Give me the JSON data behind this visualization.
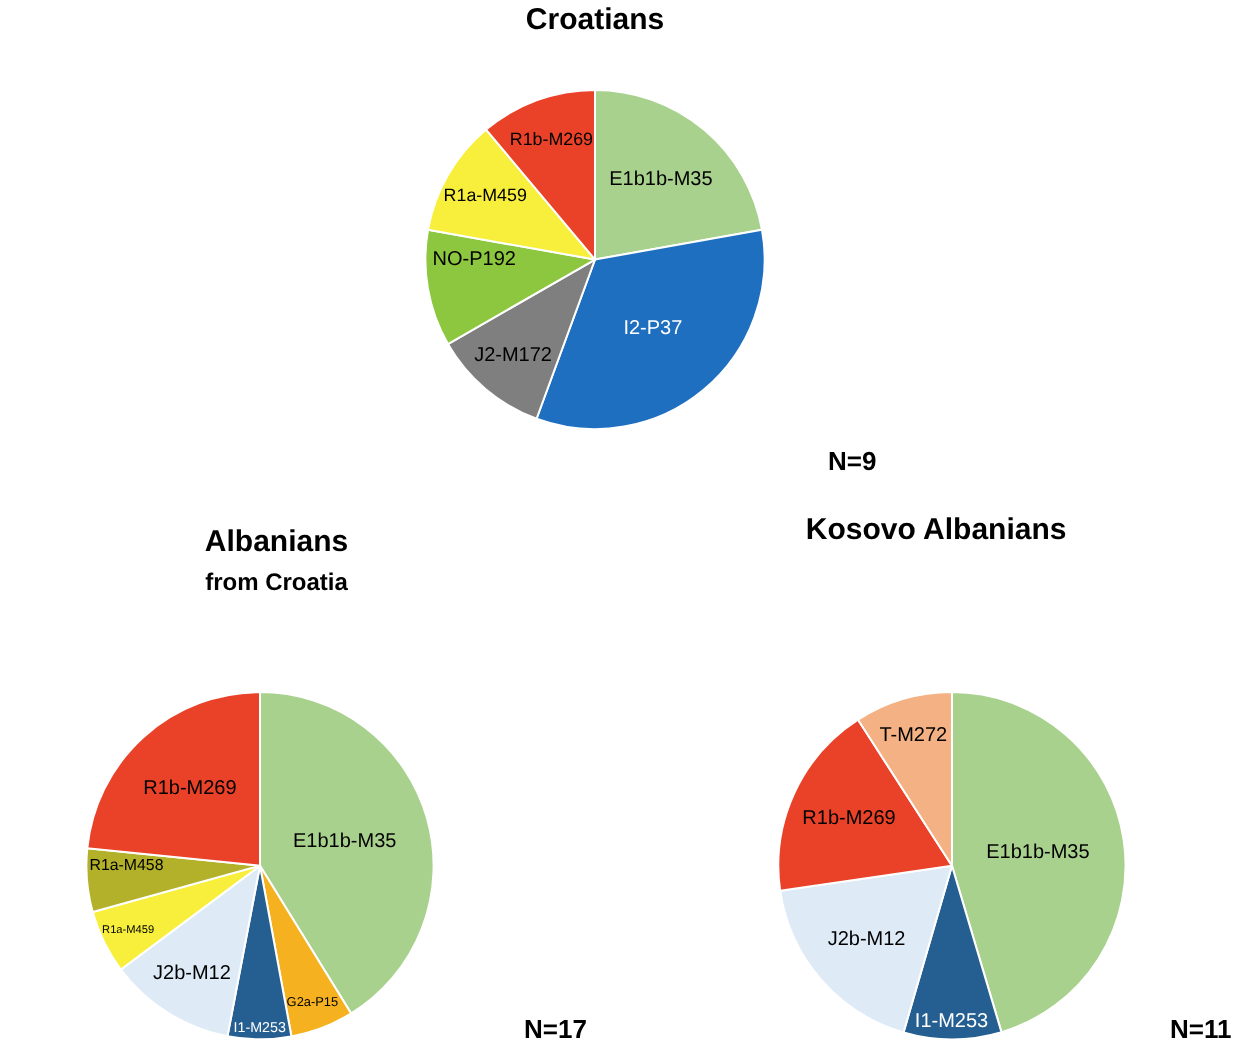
{
  "chart_data": [
    {
      "type": "pie",
      "title": "Croatians",
      "categories": [
        "E1b1b-M35",
        "I2-P37",
        "J2-M172",
        "NO-P192",
        "R1a-M459",
        "R1b-M269"
      ],
      "values": [
        22.2,
        33.4,
        11.1,
        11.1,
        11.1,
        11.1
      ],
      "colors": [
        "#a9d18e",
        "#1f6fc0",
        "#7f7f7f",
        "#8dc63f",
        "#f7ef3c",
        "#ea4129"
      ],
      "annotations": [
        "N=9"
      ],
      "legend": false
    },
    {
      "type": "pie",
      "title": "Albanians",
      "subtitle": "from Croatia",
      "categories": [
        "E1b1b-M35",
        "G2a-P15",
        "I1-M253",
        "J2b-M12",
        "R1a-M459",
        "R1a-M458",
        "R1b-M269"
      ],
      "values": [
        41.2,
        5.9,
        5.9,
        11.8,
        5.9,
        5.9,
        23.4
      ],
      "colors": [
        "#a9d18e",
        "#f5b120",
        "#255e91",
        "#deebf7",
        "#f7ef3c",
        "#b3b02a",
        "#ea4129"
      ],
      "annotations": [
        "N=17"
      ],
      "legend": false
    },
    {
      "type": "pie",
      "title": "Kosovo Albanians",
      "categories": [
        "E1b1b-M35",
        "I1-M253",
        "J2b-M12",
        "R1b-M269",
        "T-M272"
      ],
      "values": [
        45.4,
        9.1,
        18.2,
        18.2,
        9.1
      ],
      "colors": [
        "#a9d18e",
        "#255e91",
        "#deebf7",
        "#ea4129",
        "#f4b183"
      ],
      "annotations": [
        "N=11"
      ],
      "legend": false
    }
  ]
}
